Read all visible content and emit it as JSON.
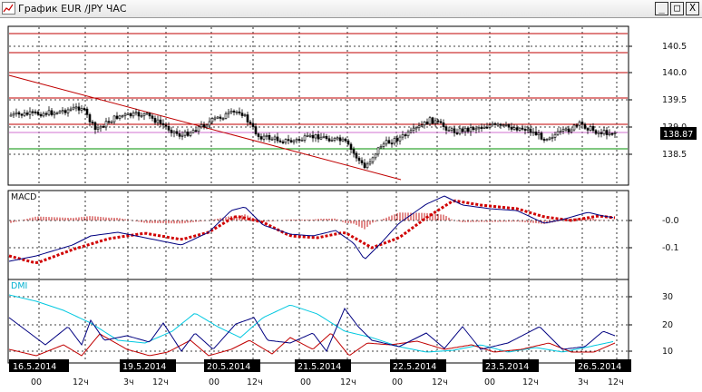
{
  "window": {
    "title": "График EUR /JPY  ЧАС",
    "buttons": {
      "minimize": "_",
      "maximize": "□",
      "close": "X"
    }
  },
  "price_panel": {
    "y_ticks": [
      "140.5",
      "140.0",
      "139.5",
      "139.0",
      "138.5"
    ],
    "current_price": "138.87",
    "colors": {
      "resistance": "#c00000",
      "support": "#009000",
      "trendline": "#c00000",
      "marker": "#000000"
    }
  },
  "macd_panel": {
    "label": "MACD",
    "y_ticks": [
      "-0.0",
      "-0.1"
    ],
    "colors": {
      "histogram": "#c00000",
      "line": "#000080",
      "signal": "#d00000"
    }
  },
  "dmi_panel": {
    "label": "DMI",
    "y_ticks": [
      "30",
      "20",
      "10"
    ],
    "colors": {
      "adx": "#00c8e0",
      "plus_di": "#000080",
      "minus_di": "#c00000"
    }
  },
  "time_axis": {
    "dates": [
      "16.5.2014",
      "19.5.2014",
      "20.5.2014",
      "21.5.2014",
      "22.5.2014",
      "23.5.2014",
      "26.5.2014"
    ],
    "hours": [
      "00",
      "12ч",
      "3ч",
      "12ч",
      "00",
      "12ч",
      "00",
      "12ч",
      "00",
      "12ч",
      "00",
      "12ч",
      "3ч",
      "12ч"
    ]
  }
}
